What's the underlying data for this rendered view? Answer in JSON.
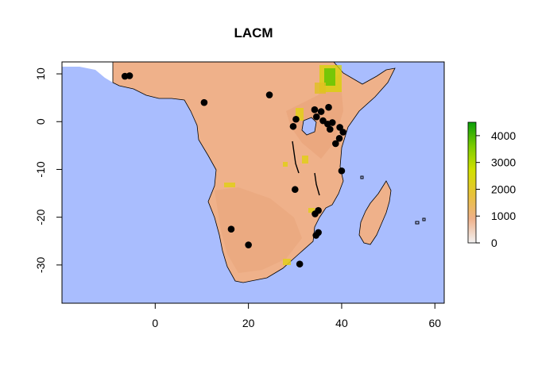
{
  "chart_data": {
    "type": "scatter",
    "title": "LACM",
    "xlabel": "",
    "ylabel": "",
    "xlim": [
      -20,
      62
    ],
    "ylim": [
      -38,
      12.5
    ],
    "x_ticks": [
      0,
      20,
      40,
      60
    ],
    "y_ticks": [
      10,
      0,
      -10,
      -20,
      -30
    ],
    "x_tick_labels": [
      "0",
      "20",
      "40",
      "60"
    ],
    "y_tick_labels": [
      "10",
      "0",
      "-10",
      "-20",
      "-30"
    ],
    "background": "ocean",
    "colors": {
      "ocean": "#a9bdfe",
      "land_low": "#f5e1dc",
      "land_mid": "#efb18a",
      "land_high": "#e0d800",
      "land_peak": "#1a9e1a",
      "points": "#000000"
    },
    "legend": {
      "placement": "right",
      "min": 0,
      "max": 4500,
      "ticks": [
        0,
        1000,
        2000,
        3000,
        4000
      ],
      "tick_labels": [
        "0",
        "1000",
        "2000",
        "3000",
        "4000"
      ],
      "stops": [
        "#f2f2f2",
        "#efb18a",
        "#e8c23a",
        "#d2e000",
        "#7ccc00",
        "#0a9e0a"
      ]
    },
    "points": [
      {
        "x": -6.5,
        "y": 9.5
      },
      {
        "x": -5.5,
        "y": 9.6
      },
      {
        "x": 10.5,
        "y": 4.0
      },
      {
        "x": 24.5,
        "y": 5.6
      },
      {
        "x": 30.2,
        "y": 0.5
      },
      {
        "x": 29.6,
        "y": -1.0
      },
      {
        "x": 34.2,
        "y": 2.5
      },
      {
        "x": 35.6,
        "y": 2.1
      },
      {
        "x": 37.2,
        "y": 3.0
      },
      {
        "x": 34.6,
        "y": 1.0
      },
      {
        "x": 36.0,
        "y": 0.2
      },
      {
        "x": 37.0,
        "y": -0.5
      },
      {
        "x": 37.5,
        "y": -1.6
      },
      {
        "x": 38.0,
        "y": -0.2
      },
      {
        "x": 39.6,
        "y": -1.2
      },
      {
        "x": 40.3,
        "y": -2.2
      },
      {
        "x": 39.5,
        "y": -3.5
      },
      {
        "x": 38.7,
        "y": -4.6
      },
      {
        "x": 40.0,
        "y": -10.3
      },
      {
        "x": 30.0,
        "y": -14.2
      },
      {
        "x": 35.0,
        "y": -18.6
      },
      {
        "x": 34.3,
        "y": -19.3
      },
      {
        "x": 35.0,
        "y": -23.2
      },
      {
        "x": 34.5,
        "y": -23.8
      },
      {
        "x": 16.3,
        "y": -22.5
      },
      {
        "x": 20.0,
        "y": -25.8
      },
      {
        "x": 31.0,
        "y": -29.8
      }
    ]
  }
}
